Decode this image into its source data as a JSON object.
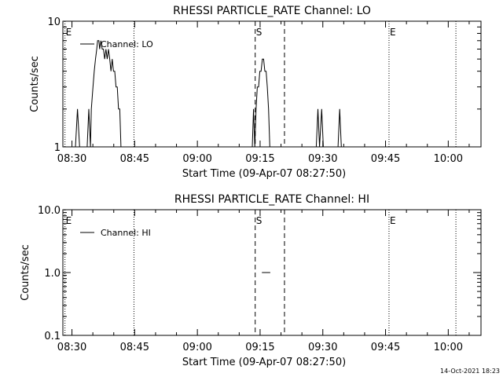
{
  "footer_timestamp": "14-Oct-2021 18:23",
  "chart_data": [
    {
      "type": "line",
      "title": "RHESSI PARTICLE_RATE Channel: LO",
      "xlabel": "Start Time (09-Apr-07 08:27:50)",
      "ylabel": "Counts/sec",
      "yscale": "log",
      "ylim": [
        1,
        10
      ],
      "xlim_minutes": [
        0,
        100
      ],
      "x_ticks": [
        {
          "t": 2.17,
          "label": "08:30"
        },
        {
          "t": 17.17,
          "label": "08:45"
        },
        {
          "t": 32.17,
          "label": "09:00"
        },
        {
          "t": 47.17,
          "label": "09:15"
        },
        {
          "t": 62.17,
          "label": "09:30"
        },
        {
          "t": 77.17,
          "label": "09:45"
        },
        {
          "t": 92.17,
          "label": "10:00"
        }
      ],
      "y_ticks": [
        {
          "v": 1,
          "label": "1"
        },
        {
          "v": 10,
          "label": "10"
        }
      ],
      "legend": "Channel: LO",
      "legend_position": "top-left",
      "vlines": [
        {
          "t": 0.5,
          "style": "dotted",
          "label": "E"
        },
        {
          "t": 17.0,
          "style": "dotted",
          "label": ""
        },
        {
          "t": 46.0,
          "style": "dashed",
          "label": "S"
        },
        {
          "t": 53.0,
          "style": "dashed",
          "label": ""
        },
        {
          "t": 78.0,
          "style": "dotted",
          "label": "E"
        },
        {
          "t": 94.0,
          "style": "dotted",
          "label": ""
        }
      ],
      "series": [
        {
          "name": "LO",
          "points": [
            [
              3.0,
              1
            ],
            [
              3.5,
              2
            ],
            [
              4.0,
              1
            ],
            [
              5.8,
              1
            ],
            [
              6.2,
              2
            ],
            [
              6.6,
              1
            ],
            [
              6.8,
              2
            ],
            [
              7.2,
              3
            ],
            [
              7.5,
              4
            ],
            [
              7.8,
              5
            ],
            [
              8.1,
              6
            ],
            [
              8.3,
              7
            ],
            [
              8.6,
              7
            ],
            [
              8.8,
              6
            ],
            [
              9.1,
              7
            ],
            [
              9.4,
              6
            ],
            [
              9.7,
              6
            ],
            [
              10.0,
              5
            ],
            [
              10.3,
              6
            ],
            [
              10.6,
              5
            ],
            [
              10.9,
              6
            ],
            [
              11.2,
              5
            ],
            [
              11.5,
              4
            ],
            [
              11.8,
              5
            ],
            [
              12.1,
              4
            ],
            [
              12.4,
              4
            ],
            [
              12.7,
              3
            ],
            [
              13.0,
              3
            ],
            [
              13.3,
              2
            ],
            [
              13.6,
              2
            ],
            [
              13.9,
              1
            ],
            [
              45.3,
              1
            ],
            [
              45.6,
              2
            ],
            [
              45.9,
              1
            ],
            [
              46.2,
              2
            ],
            [
              46.5,
              3
            ],
            [
              46.8,
              3
            ],
            [
              47.1,
              4
            ],
            [
              47.4,
              4
            ],
            [
              47.7,
              5
            ],
            [
              48.0,
              5
            ],
            [
              48.3,
              4
            ],
            [
              48.6,
              4
            ],
            [
              48.9,
              3
            ],
            [
              49.2,
              2
            ],
            [
              49.5,
              1
            ],
            [
              60.6,
              1
            ],
            [
              61.0,
              2
            ],
            [
              61.4,
              1
            ],
            [
              61.9,
              2
            ],
            [
              62.3,
              1
            ],
            [
              65.8,
              1
            ],
            [
              66.2,
              2
            ],
            [
              66.6,
              1
            ]
          ]
        }
      ]
    },
    {
      "type": "line",
      "title": "RHESSI PARTICLE_RATE Channel: HI",
      "xlabel": "Start Time (09-Apr-07 08:27:50)",
      "ylabel": "Counts/sec",
      "yscale": "log",
      "ylim": [
        0.1,
        10
      ],
      "xlim_minutes": [
        0,
        100
      ],
      "x_ticks": [
        {
          "t": 2.17,
          "label": "08:30"
        },
        {
          "t": 17.17,
          "label": "08:45"
        },
        {
          "t": 32.17,
          "label": "09:00"
        },
        {
          "t": 47.17,
          "label": "09:15"
        },
        {
          "t": 62.17,
          "label": "09:30"
        },
        {
          "t": 77.17,
          "label": "09:45"
        },
        {
          "t": 92.17,
          "label": "10:00"
        }
      ],
      "y_ticks": [
        {
          "v": 0.1,
          "label": "0.1"
        },
        {
          "v": 1,
          "label": "1.0"
        },
        {
          "v": 10,
          "label": "10.0"
        }
      ],
      "legend": "Channel: HI",
      "legend_position": "top-left",
      "vlines": [
        {
          "t": 0.5,
          "style": "dotted",
          "label": "E"
        },
        {
          "t": 17.0,
          "style": "dotted",
          "label": ""
        },
        {
          "t": 46.0,
          "style": "dashed",
          "label": "S"
        },
        {
          "t": 53.0,
          "style": "dashed",
          "label": ""
        },
        {
          "t": 78.0,
          "style": "dotted",
          "label": "E"
        },
        {
          "t": 94.0,
          "style": "dotted",
          "label": ""
        }
      ],
      "series": [
        {
          "name": "HI",
          "points": [
            [
              47.6,
              1
            ],
            [
              49.6,
              1
            ]
          ]
        }
      ]
    }
  ]
}
